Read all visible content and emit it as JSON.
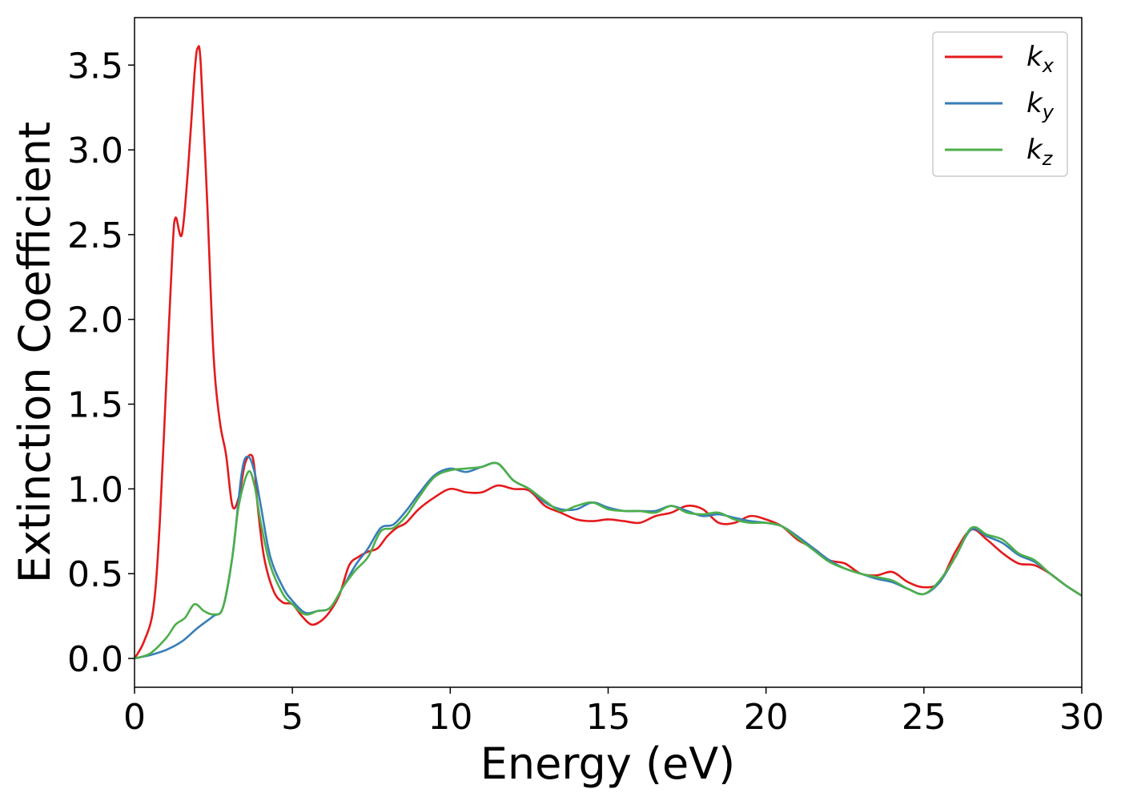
{
  "chart_data": {
    "type": "line",
    "title": "",
    "xlabel": "Energy (eV)",
    "ylabel": "Extinction Coefficient",
    "xlim": [
      0,
      30
    ],
    "ylim": [
      -0.17,
      3.78
    ],
    "xticks": [
      0,
      5,
      10,
      15,
      20,
      25,
      30
    ],
    "xtick_labels": [
      "0",
      "5",
      "10",
      "15",
      "20",
      "25",
      "30"
    ],
    "yticks": [
      0.0,
      0.5,
      1.0,
      1.5,
      2.0,
      2.5,
      3.0,
      3.5
    ],
    "ytick_labels": [
      "0.0",
      "0.5",
      "1.0",
      "1.5",
      "2.0",
      "2.5",
      "3.0",
      "3.5"
    ],
    "grid": false,
    "legend_position": "top-right",
    "series": [
      {
        "name": "k",
        "subscript": "x",
        "color": "#e41a1c",
        "x": [
          0,
          0.3,
          0.6,
          0.8,
          1.0,
          1.2,
          1.3,
          1.5,
          1.7,
          1.9,
          2.0,
          2.1,
          2.3,
          2.5,
          2.7,
          2.9,
          3.1,
          3.3,
          3.5,
          3.7,
          3.8,
          3.9,
          4.1,
          4.4,
          4.7,
          5.0,
          5.3,
          5.6,
          5.9,
          6.2,
          6.5,
          6.8,
          7.1,
          7.4,
          7.7,
          8.0,
          8.3,
          8.6,
          9.0,
          9.5,
          10.0,
          10.5,
          11.0,
          11.5,
          12.0,
          12.5,
          13.0,
          13.5,
          14.0,
          14.5,
          15.0,
          15.5,
          16.0,
          16.5,
          17.0,
          17.5,
          18.0,
          18.5,
          19.0,
          19.5,
          20.0,
          20.5,
          21.0,
          21.5,
          22.0,
          22.5,
          23.0,
          23.5,
          24.0,
          24.5,
          25.0,
          25.5,
          26.0,
          26.5,
          27.0,
          27.5,
          28.0,
          28.5,
          29.0,
          29.5,
          30.0
        ],
        "y": [
          0.0,
          0.1,
          0.3,
          0.8,
          1.6,
          2.4,
          2.6,
          2.5,
          2.9,
          3.45,
          3.6,
          3.5,
          2.7,
          1.8,
          1.4,
          1.2,
          0.9,
          0.95,
          1.15,
          1.2,
          1.12,
          0.9,
          0.6,
          0.4,
          0.33,
          0.32,
          0.25,
          0.2,
          0.22,
          0.28,
          0.38,
          0.55,
          0.6,
          0.63,
          0.65,
          0.72,
          0.77,
          0.8,
          0.88,
          0.95,
          1.0,
          0.98,
          0.98,
          1.02,
          1.0,
          0.99,
          0.9,
          0.86,
          0.82,
          0.81,
          0.82,
          0.81,
          0.8,
          0.84,
          0.86,
          0.9,
          0.88,
          0.8,
          0.8,
          0.84,
          0.82,
          0.78,
          0.7,
          0.65,
          0.58,
          0.56,
          0.5,
          0.49,
          0.51,
          0.45,
          0.42,
          0.45,
          0.63,
          0.76,
          0.7,
          0.62,
          0.56,
          0.55,
          0.5,
          0.43,
          0.37
        ]
      },
      {
        "name": "k",
        "subscript": "y",
        "color": "#377eb8",
        "x": [
          0,
          0.5,
          1.0,
          1.5,
          2.0,
          2.5,
          2.8,
          3.1,
          3.4,
          3.6,
          3.8,
          4.0,
          4.3,
          4.7,
          5.0,
          5.4,
          5.8,
          6.2,
          6.6,
          7.0,
          7.4,
          7.8,
          8.2,
          8.6,
          9.0,
          9.5,
          10.0,
          10.5,
          11.0,
          11.5,
          12.0,
          12.5,
          13.0,
          13.5,
          14.0,
          14.5,
          15.0,
          15.5,
          16.0,
          16.5,
          17.0,
          17.5,
          18.0,
          18.5,
          19.0,
          19.5,
          20.0,
          20.5,
          21.0,
          21.5,
          22.0,
          22.5,
          23.0,
          23.5,
          24.0,
          24.5,
          25.0,
          25.5,
          26.0,
          26.5,
          27.0,
          27.5,
          28.0,
          28.5,
          29.0,
          29.5,
          30.0
        ],
        "y": [
          0.0,
          0.02,
          0.05,
          0.1,
          0.18,
          0.25,
          0.3,
          0.6,
          1.1,
          1.19,
          1.1,
          0.9,
          0.6,
          0.42,
          0.34,
          0.27,
          0.28,
          0.3,
          0.42,
          0.55,
          0.65,
          0.77,
          0.79,
          0.87,
          0.97,
          1.08,
          1.12,
          1.1,
          1.13,
          1.15,
          1.05,
          1.0,
          0.92,
          0.88,
          0.88,
          0.92,
          0.89,
          0.87,
          0.87,
          0.87,
          0.9,
          0.87,
          0.84,
          0.85,
          0.83,
          0.81,
          0.8,
          0.78,
          0.72,
          0.65,
          0.58,
          0.53,
          0.5,
          0.47,
          0.45,
          0.41,
          0.38,
          0.45,
          0.6,
          0.76,
          0.72,
          0.68,
          0.61,
          0.57,
          0.5,
          0.43,
          0.37
        ]
      },
      {
        "name": "k",
        "subscript": "z",
        "color": "#4daf4a",
        "x": [
          0,
          0.5,
          1.0,
          1.3,
          1.6,
          1.9,
          2.2,
          2.5,
          2.8,
          3.1,
          3.3,
          3.6,
          3.8,
          4.0,
          4.3,
          4.7,
          5.0,
          5.4,
          5.8,
          6.2,
          6.6,
          7.0,
          7.4,
          7.8,
          8.2,
          8.6,
          9.0,
          9.5,
          10.0,
          10.5,
          11.0,
          11.5,
          12.0,
          12.5,
          13.0,
          13.5,
          14.0,
          14.5,
          15.0,
          15.5,
          16.0,
          16.5,
          17.0,
          17.5,
          18.0,
          18.5,
          19.0,
          19.5,
          20.0,
          20.5,
          21.0,
          21.5,
          22.0,
          22.5,
          23.0,
          23.5,
          24.0,
          24.5,
          25.0,
          25.5,
          26.0,
          26.5,
          27.0,
          27.5,
          28.0,
          28.5,
          29.0,
          29.5,
          30.0
        ],
        "y": [
          0.0,
          0.03,
          0.12,
          0.2,
          0.24,
          0.32,
          0.28,
          0.26,
          0.3,
          0.6,
          0.9,
          1.1,
          1.02,
          0.8,
          0.55,
          0.38,
          0.32,
          0.26,
          0.28,
          0.3,
          0.42,
          0.52,
          0.6,
          0.75,
          0.77,
          0.84,
          0.95,
          1.07,
          1.11,
          1.12,
          1.13,
          1.15,
          1.05,
          1.0,
          0.93,
          0.87,
          0.9,
          0.92,
          0.88,
          0.87,
          0.87,
          0.86,
          0.9,
          0.86,
          0.85,
          0.86,
          0.82,
          0.8,
          0.8,
          0.78,
          0.71,
          0.64,
          0.57,
          0.53,
          0.5,
          0.48,
          0.46,
          0.41,
          0.38,
          0.46,
          0.6,
          0.77,
          0.73,
          0.7,
          0.62,
          0.58,
          0.5,
          0.43,
          0.37
        ]
      }
    ]
  }
}
